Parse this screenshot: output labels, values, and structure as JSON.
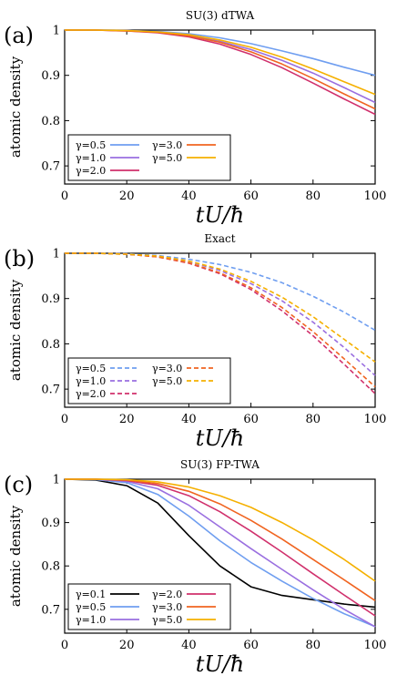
{
  "chart_data": [
    {
      "type": "line",
      "panel_label": "(a)",
      "title": "SU(3) dTWA",
      "xlabel": "tU/ħ",
      "ylabel": "atomic density",
      "xlim": [
        0,
        100
      ],
      "ylim": [
        0.66,
        1.0
      ],
      "xticks": [
        "0",
        "20",
        "40",
        "60",
        "80",
        "100"
      ],
      "yticks": [
        "0.7",
        "0.8",
        "0.9",
        "1"
      ],
      "line_style": "solid",
      "legend_position": "bottom-left",
      "x": [
        0,
        10,
        20,
        30,
        40,
        50,
        60,
        70,
        80,
        90,
        100
      ],
      "series": [
        {
          "name": "γ=0.5",
          "color": "#6f9ef0",
          "values": [
            1.0,
            1.0,
            0.999,
            0.997,
            0.992,
            0.983,
            0.97,
            0.954,
            0.937,
            0.918,
            0.9
          ]
        },
        {
          "name": "γ=1.0",
          "color": "#9a6fe0",
          "values": [
            1.0,
            1.0,
            0.999,
            0.996,
            0.988,
            0.975,
            0.957,
            0.933,
            0.905,
            0.873,
            0.84
          ]
        },
        {
          "name": "γ=2.0",
          "color": "#d0306c",
          "values": [
            1.0,
            1.0,
            0.998,
            0.994,
            0.985,
            0.969,
            0.946,
            0.917,
            0.883,
            0.848,
            0.814
          ]
        },
        {
          "name": "γ=3.0",
          "color": "#f06420",
          "values": [
            1.0,
            1.0,
            0.998,
            0.995,
            0.987,
            0.973,
            0.952,
            0.925,
            0.893,
            0.859,
            0.826
          ]
        },
        {
          "name": "γ=5.0",
          "color": "#f5b000",
          "values": [
            1.0,
            1.0,
            0.999,
            0.996,
            0.99,
            0.978,
            0.962,
            0.94,
            0.914,
            0.886,
            0.858
          ]
        }
      ]
    },
    {
      "type": "line",
      "panel_label": "(b)",
      "title": "Exact",
      "xlabel": "tU/ħ",
      "ylabel": "atomic density",
      "xlim": [
        0,
        100
      ],
      "ylim": [
        0.66,
        1.0
      ],
      "xticks": [
        "0",
        "20",
        "40",
        "60",
        "80",
        "100"
      ],
      "yticks": [
        "0.7",
        "0.8",
        "0.9",
        "1"
      ],
      "line_style": "dashed",
      "legend_position": "bottom-left",
      "x": [
        0,
        10,
        20,
        30,
        40,
        50,
        60,
        70,
        80,
        90,
        100
      ],
      "series": [
        {
          "name": "γ=0.5",
          "color": "#6f9ef0",
          "values": [
            1.0,
            1.0,
            0.999,
            0.995,
            0.987,
            0.975,
            0.958,
            0.935,
            0.905,
            0.87,
            0.83
          ]
        },
        {
          "name": "γ=1.0",
          "color": "#9a6fe0",
          "values": [
            1.0,
            1.0,
            0.998,
            0.993,
            0.982,
            0.962,
            0.933,
            0.895,
            0.848,
            0.792,
            0.73
          ]
        },
        {
          "name": "γ=2.0",
          "color": "#d0306c",
          "values": [
            1.0,
            1.0,
            0.998,
            0.992,
            0.978,
            0.955,
            0.92,
            0.873,
            0.818,
            0.755,
            0.69
          ]
        },
        {
          "name": "γ=3.0",
          "color": "#f06420",
          "values": [
            1.0,
            1.0,
            0.998,
            0.992,
            0.979,
            0.957,
            0.924,
            0.88,
            0.827,
            0.767,
            0.705
          ]
        },
        {
          "name": "γ=5.0",
          "color": "#f5b000",
          "values": [
            1.0,
            1.0,
            0.998,
            0.994,
            0.983,
            0.965,
            0.938,
            0.903,
            0.86,
            0.81,
            0.76
          ]
        }
      ]
    },
    {
      "type": "line",
      "panel_label": "(c)",
      "title": "SU(3) FP-TWA",
      "xlabel": "tU/ħ",
      "ylabel": "atomic density",
      "xlim": [
        0,
        100
      ],
      "ylim": [
        0.645,
        1.0
      ],
      "xticks": [
        "0",
        "20",
        "40",
        "60",
        "80",
        "100"
      ],
      "yticks": [
        "0.7",
        "0.8",
        "0.9",
        "1"
      ],
      "line_style": "solid",
      "legend_position": "bottom-left",
      "x": [
        0,
        10,
        20,
        30,
        40,
        50,
        60,
        70,
        80,
        90,
        100
      ],
      "series": [
        {
          "name": "γ=0.1",
          "color": "#000000",
          "values": [
            1.0,
            0.998,
            0.985,
            0.945,
            0.87,
            0.8,
            0.752,
            0.732,
            0.722,
            0.712,
            0.705
          ]
        },
        {
          "name": "γ=0.5",
          "color": "#6f9ef0",
          "values": [
            1.0,
            0.999,
            0.992,
            0.965,
            0.915,
            0.858,
            0.808,
            0.765,
            0.725,
            0.69,
            0.66
          ]
        },
        {
          "name": "γ=1.0",
          "color": "#9a6fe0",
          "values": [
            1.0,
            1.0,
            0.995,
            0.978,
            0.94,
            0.89,
            0.84,
            0.792,
            0.745,
            0.7,
            0.66
          ]
        },
        {
          "name": "γ=2.0",
          "color": "#d0306c",
          "values": [
            1.0,
            1.0,
            0.997,
            0.986,
            0.962,
            0.925,
            0.88,
            0.832,
            0.782,
            0.733,
            0.685
          ]
        },
        {
          "name": "γ=3.0",
          "color": "#f06420",
          "values": [
            1.0,
            1.0,
            0.998,
            0.99,
            0.972,
            0.943,
            0.905,
            0.862,
            0.815,
            0.768,
            0.72
          ]
        },
        {
          "name": "γ=5.0",
          "color": "#f5b000",
          "values": [
            1.0,
            1.0,
            0.999,
            0.994,
            0.982,
            0.962,
            0.935,
            0.9,
            0.86,
            0.815,
            0.765
          ]
        }
      ]
    }
  ]
}
